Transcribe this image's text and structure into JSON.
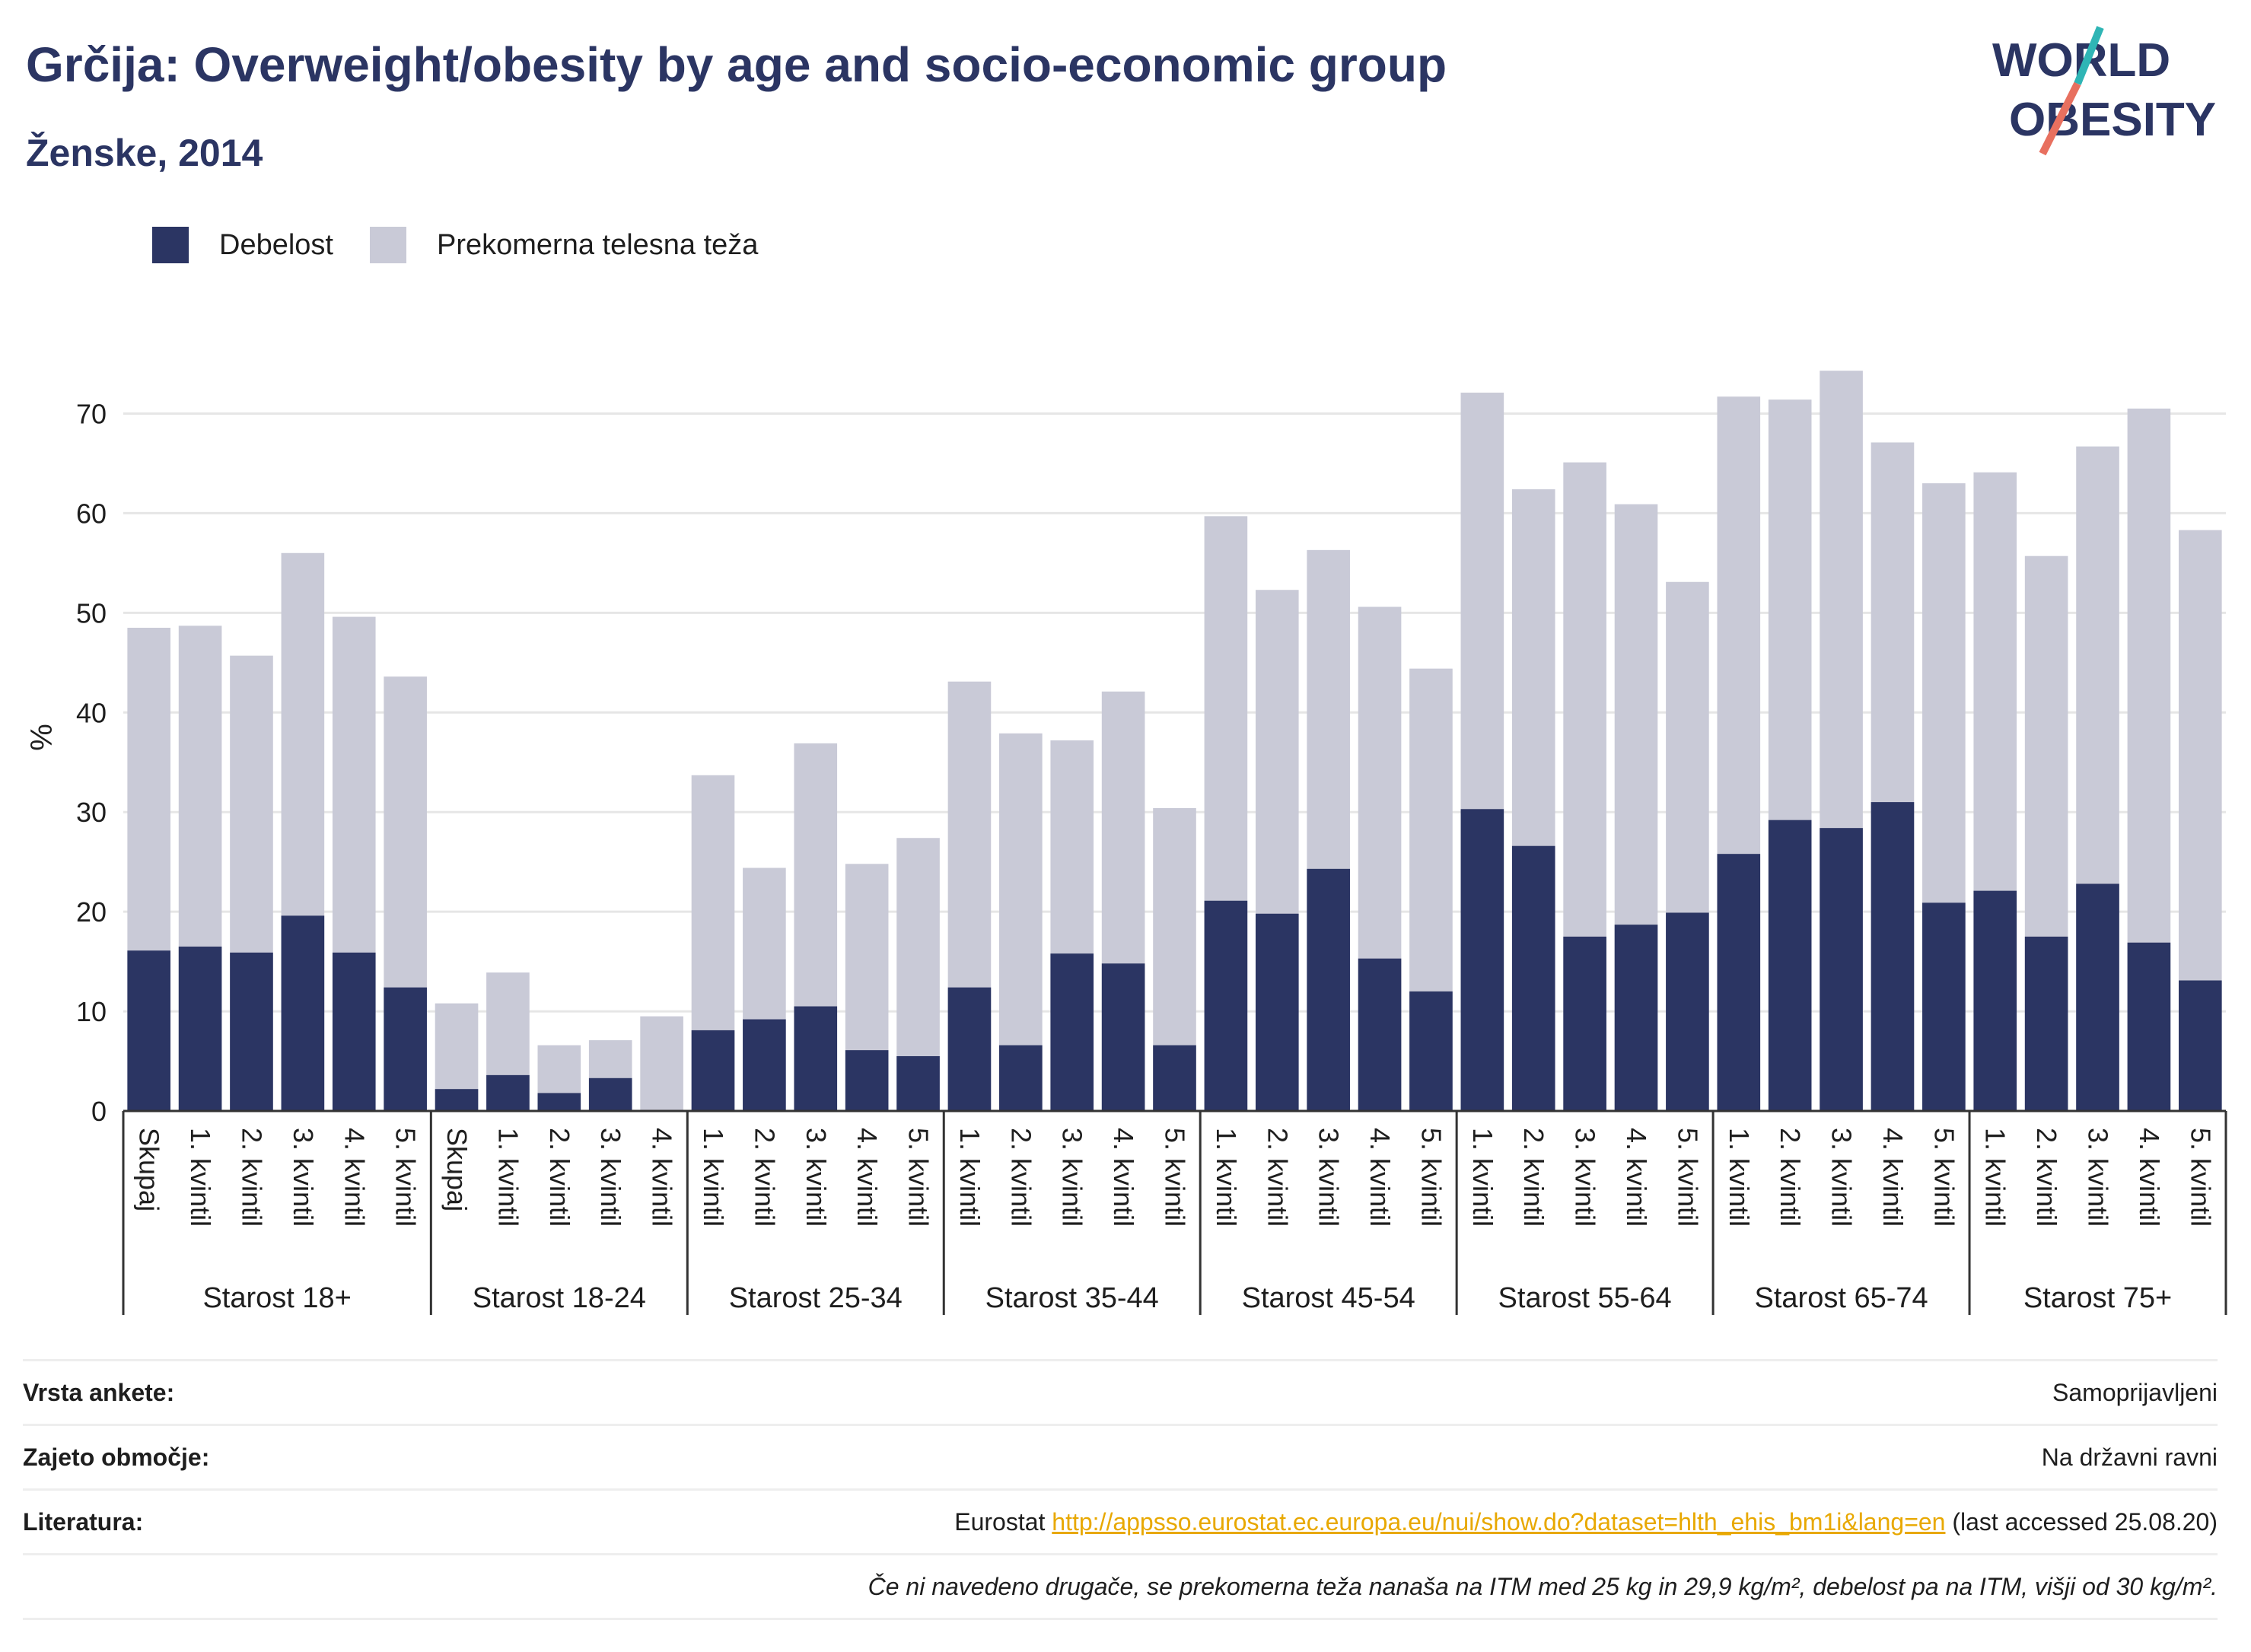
{
  "header": {
    "title": "Grčija: Overweight/obesity by age and socio-economic group",
    "subtitle": "Ženske, 2014"
  },
  "logo": {
    "line1": "WORLD",
    "line2": "OBESITY"
  },
  "colors": {
    "obesity": "#2b3563",
    "overweight": "#c9cad7",
    "grid": "#e6e6e6",
    "link": "#e8a800"
  },
  "legend": [
    {
      "label": "Debelost",
      "color": "#2b3563"
    },
    {
      "label": "Prekomerna telesna teža",
      "color": "#c9cad7"
    }
  ],
  "chart_data": {
    "type": "bar",
    "stacked": true,
    "ylabel": "%",
    "ylim": [
      0,
      75
    ],
    "yticks": [
      0,
      10,
      20,
      30,
      40,
      50,
      60,
      70
    ],
    "grid": true,
    "legend_position": "top-left",
    "series": [
      {
        "name": "Debelost",
        "key": "obesity"
      },
      {
        "name": "Prekomerna telesna teža",
        "key": "total_overweight"
      }
    ],
    "groups": [
      {
        "label": "Starost 18+",
        "bars": [
          {
            "label": "Skupaj",
            "obesity": 16.1,
            "total": 48.5
          },
          {
            "label": "1. kvintil",
            "obesity": 16.5,
            "total": 48.7
          },
          {
            "label": "2. kvintil",
            "obesity": 15.9,
            "total": 45.7
          },
          {
            "label": "3. kvintil",
            "obesity": 19.6,
            "total": 56.0
          },
          {
            "label": "4. kvintil",
            "obesity": 15.9,
            "total": 49.6
          },
          {
            "label": "5. kvintil",
            "obesity": 12.4,
            "total": 43.6
          }
        ]
      },
      {
        "label": "Starost 18-24",
        "bars": [
          {
            "label": "Skupaj",
            "obesity": 2.2,
            "total": 10.8
          },
          {
            "label": "1. kvintil",
            "obesity": 3.6,
            "total": 13.9
          },
          {
            "label": "2. kvintil",
            "obesity": 1.8,
            "total": 6.6
          },
          {
            "label": "3. kvintil",
            "obesity": 3.3,
            "total": 7.1
          },
          {
            "label": "4. kvintil",
            "obesity": 0,
            "total": 9.5
          }
        ]
      },
      {
        "label": "Starost 25-34",
        "bars": [
          {
            "label": "1. kvintil",
            "obesity": 8.1,
            "total": 33.7
          },
          {
            "label": "2. kvintil",
            "obesity": 9.2,
            "total": 24.4
          },
          {
            "label": "3. kvintil",
            "obesity": 10.5,
            "total": 36.9
          },
          {
            "label": "4. kvintil",
            "obesity": 6.1,
            "total": 24.8
          },
          {
            "label": "5. kvintil",
            "obesity": 5.5,
            "total": 27.4
          }
        ]
      },
      {
        "label": "Starost 35-44",
        "bars": [
          {
            "label": "1. kvintil",
            "obesity": 12.4,
            "total": 43.1
          },
          {
            "label": "2. kvintil",
            "obesity": 6.6,
            "total": 37.9
          },
          {
            "label": "3. kvintil",
            "obesity": 15.8,
            "total": 37.2
          },
          {
            "label": "4. kvintil",
            "obesity": 14.8,
            "total": 42.1
          },
          {
            "label": "5. kvintil",
            "obesity": 6.6,
            "total": 30.4
          }
        ]
      },
      {
        "label": "Starost 45-54",
        "bars": [
          {
            "label": "1. kvintil",
            "obesity": 21.1,
            "total": 59.7
          },
          {
            "label": "2. kvintil",
            "obesity": 19.8,
            "total": 52.3
          },
          {
            "label": "3. kvintil",
            "obesity": 24.3,
            "total": 56.3
          },
          {
            "label": "4. kvintil",
            "obesity": 15.3,
            "total": 50.6
          },
          {
            "label": "5. kvintil",
            "obesity": 12.0,
            "total": 44.4
          }
        ]
      },
      {
        "label": "Starost 55-64",
        "bars": [
          {
            "label": "1. kvintil",
            "obesity": 30.3,
            "total": 72.1
          },
          {
            "label": "2. kvintil",
            "obesity": 26.6,
            "total": 62.4
          },
          {
            "label": "3. kvintil",
            "obesity": 17.5,
            "total": 65.1
          },
          {
            "label": "4. kvintil",
            "obesity": 18.7,
            "total": 60.9
          },
          {
            "label": "5. kvintil",
            "obesity": 19.9,
            "total": 53.1
          }
        ]
      },
      {
        "label": "Starost 65-74",
        "bars": [
          {
            "label": "1. kvintil",
            "obesity": 25.8,
            "total": 71.7
          },
          {
            "label": "2. kvintil",
            "obesity": 29.2,
            "total": 71.4
          },
          {
            "label": "3. kvintil",
            "obesity": 28.4,
            "total": 74.3
          },
          {
            "label": "4. kvintil",
            "obesity": 31.0,
            "total": 67.1
          },
          {
            "label": "5. kvintil",
            "obesity": 20.9,
            "total": 63.0
          }
        ]
      },
      {
        "label": "Starost 75+",
        "bars": [
          {
            "label": "1. kvintil",
            "obesity": 22.1,
            "total": 64.1
          },
          {
            "label": "2. kvintil",
            "obesity": 17.5,
            "total": 55.7
          },
          {
            "label": "3. kvintil",
            "obesity": 22.8,
            "total": 66.7
          },
          {
            "label": "4. kvintil",
            "obesity": 16.9,
            "total": 70.5
          },
          {
            "label": "5. kvintil",
            "obesity": 13.1,
            "total": 58.3
          }
        ]
      }
    ]
  },
  "meta": {
    "survey_type": {
      "label": "Vrsta ankete:",
      "value": "Samoprijavljeni"
    },
    "coverage": {
      "label": "Zajeto območje:",
      "value": "Na državni ravni"
    },
    "literature": {
      "label": "Literatura:",
      "prefix": "Eurostat ",
      "link": "http://appsso.eurostat.ec.europa.eu/nui/show.do?dataset=hlth_ehis_bm1i&lang=en",
      "suffix": " (last accessed 25.08.20)"
    },
    "note": "Če ni navedeno drugače, se prekomerna teža nanaša na ITM med 25 kg in 29,9 kg/m², debelost pa na ITM, višji od 30 kg/m²."
  }
}
